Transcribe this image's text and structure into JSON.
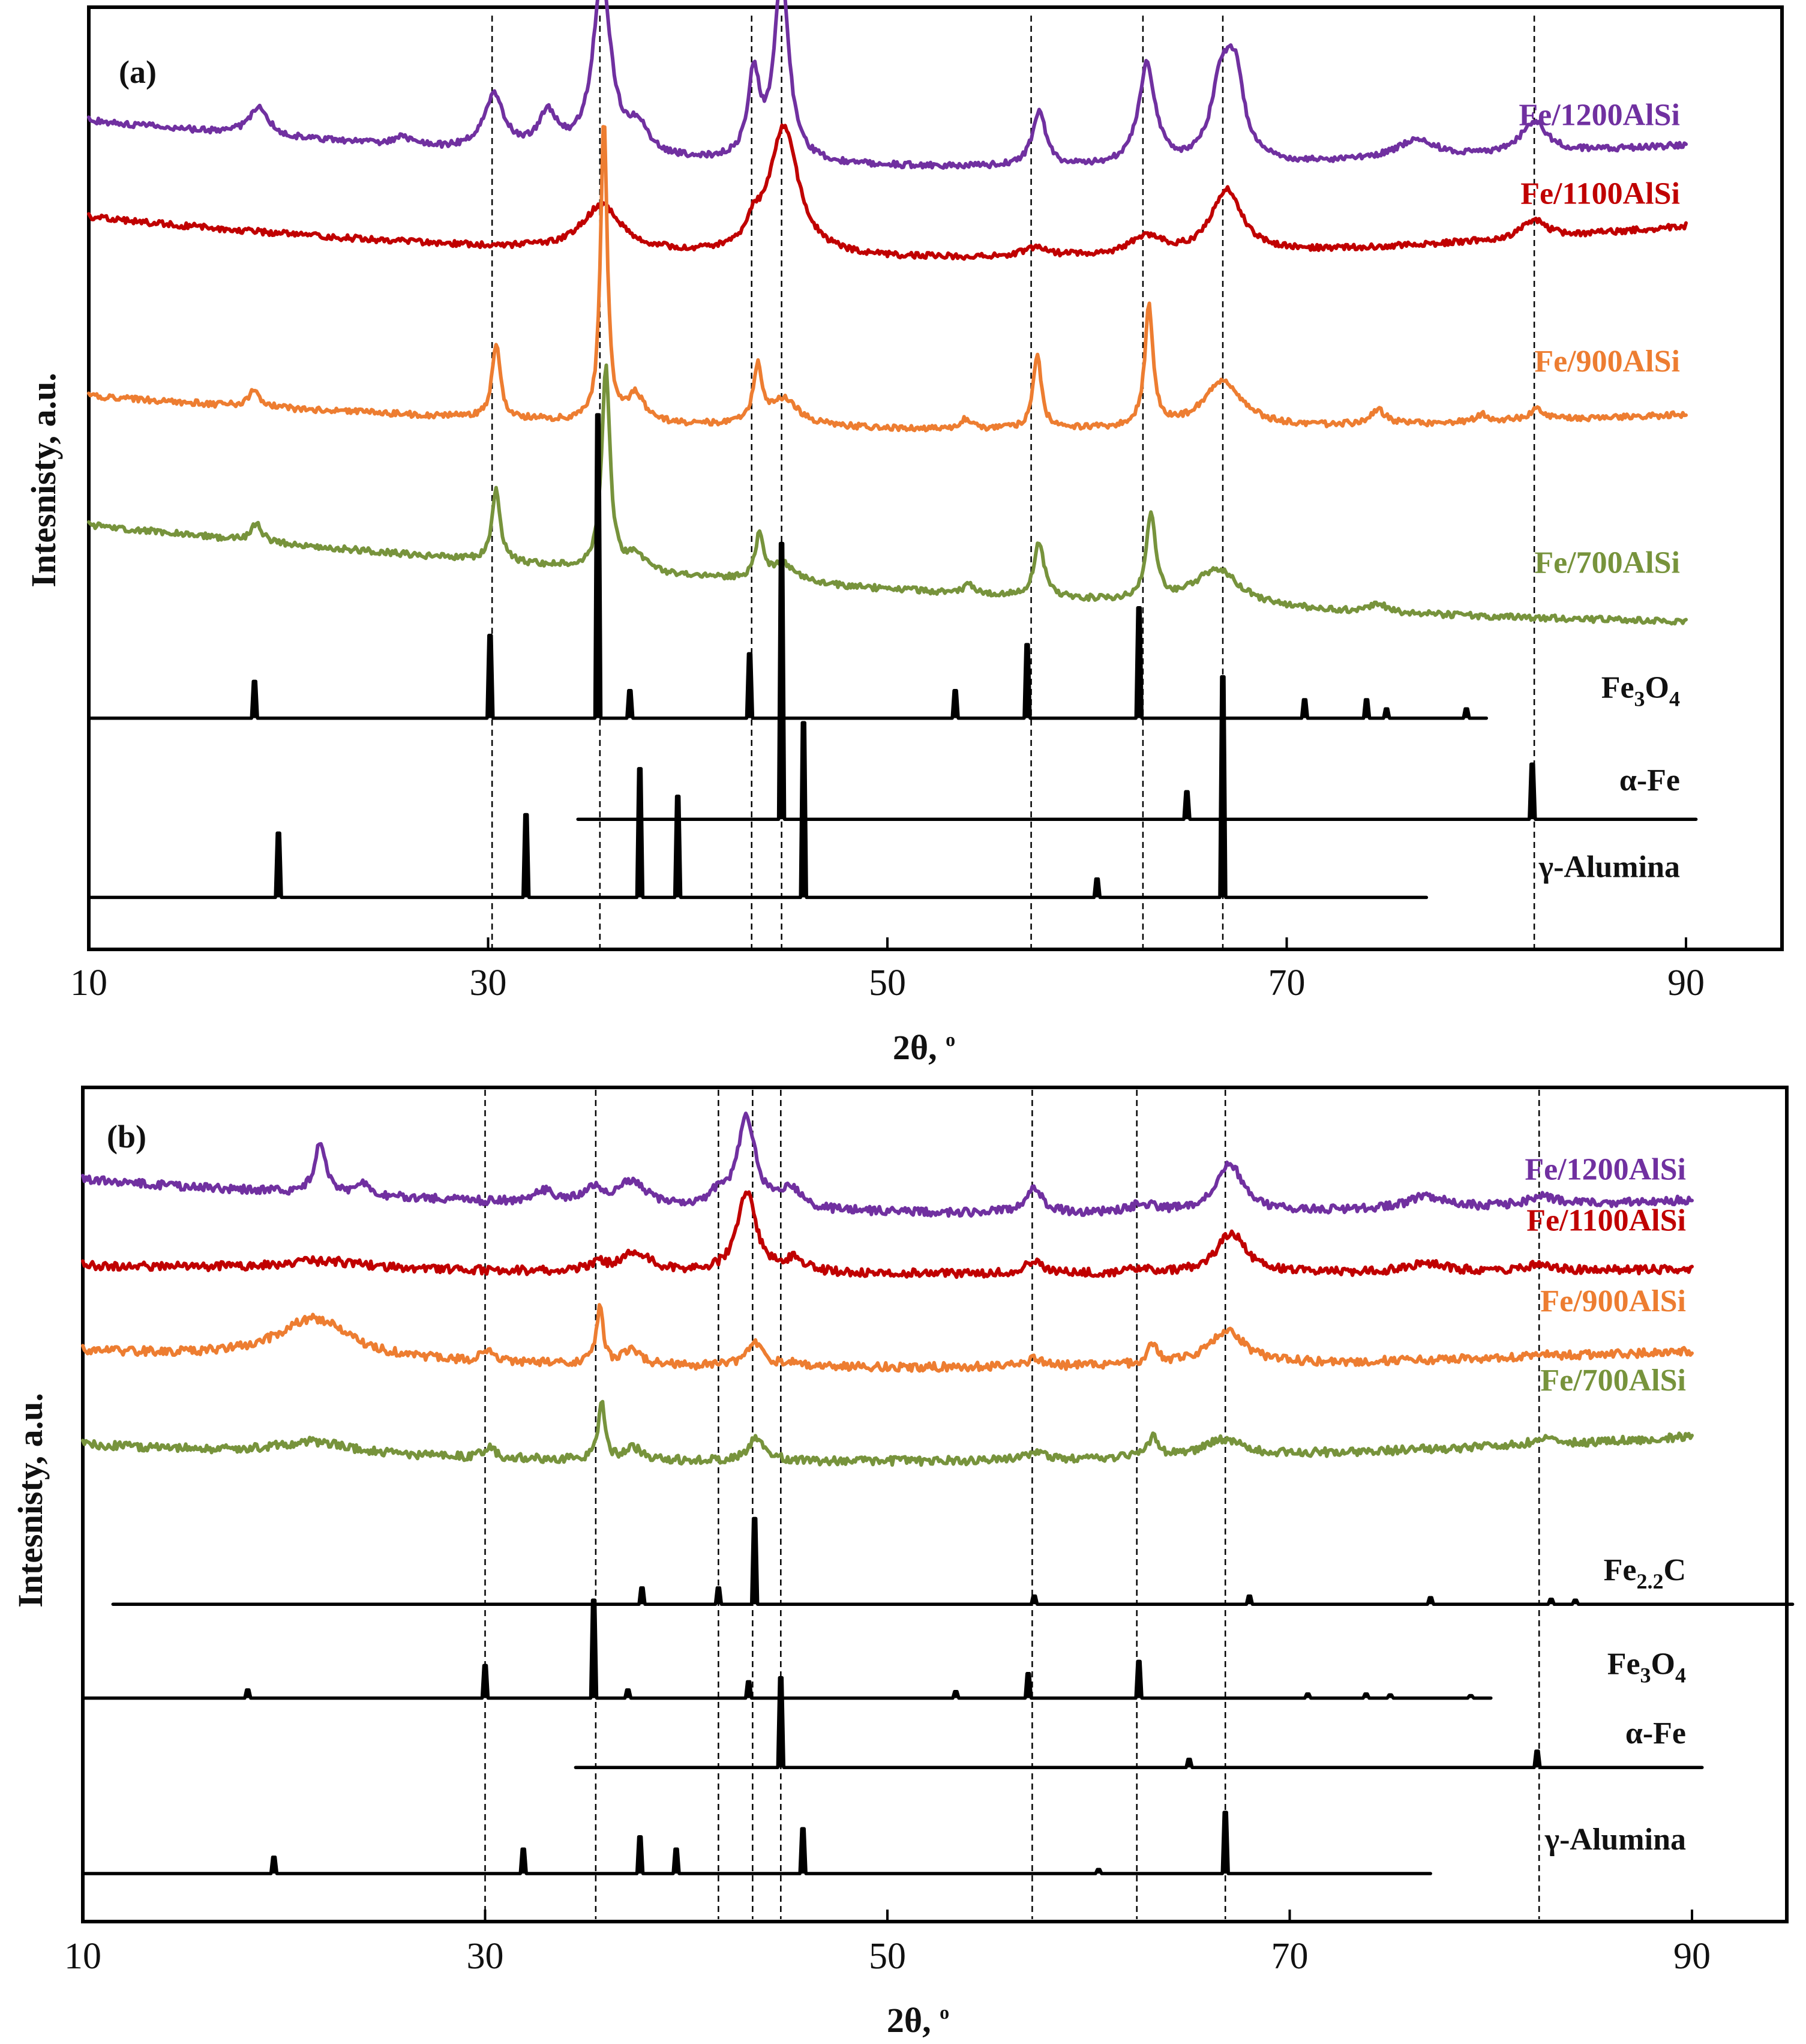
{
  "chart_data": [
    {
      "panel": "(a)",
      "type": "line",
      "title": "",
      "xlabel": "2θ, °",
      "xlabel_main": "2θ, ",
      "xlabel_degree": "o",
      "ylabel": "Intesnisty, a.u.",
      "xlim": [
        10,
        95
      ],
      "xticks": [
        10,
        30,
        50,
        70,
        90
      ],
      "grid": false,
      "reference_lines_2theta": [
        30.2,
        35.6,
        43.2,
        44.7,
        57.2,
        62.8,
        66.8,
        82.4
      ],
      "series": [
        {
          "name": "Fe/1200AlSi",
          "color": "#7030A0",
          "kind": "measured",
          "x_range": [
            10,
            90
          ],
          "baseline": [
            0.895,
            0.845,
            0.868
          ],
          "peaks": [
            [
              18.5,
              0.03,
              0.6
            ],
            [
              25.7,
              0.01,
              0.5
            ],
            [
              30.3,
              0.06,
              0.6
            ],
            [
              33.0,
              0.04,
              0.6
            ],
            [
              35.7,
              0.19,
              0.55
            ],
            [
              37.5,
              0.03,
              0.6
            ],
            [
              43.3,
              0.09,
              0.35
            ],
            [
              44.7,
              0.2,
              0.45
            ],
            [
              57.6,
              0.06,
              0.4
            ],
            [
              63.0,
              0.11,
              0.5
            ],
            [
              66.7,
              0.08,
              0.6
            ],
            [
              67.4,
              0.09,
              0.55
            ],
            [
              76.5,
              0.02,
              1.3
            ],
            [
              82.4,
              0.035,
              0.8
            ]
          ]
        },
        {
          "name": "Fe/1100AlSi",
          "color": "#C00000",
          "kind": "measured",
          "x_range": [
            10,
            90
          ],
          "baseline": [
            0.79,
            0.745,
            0.78
          ],
          "peaks": [
            [
              35.7,
              0.05,
              1.2
            ],
            [
              44.8,
              0.14,
              0.9
            ],
            [
              43.3,
              0.02,
              0.4
            ],
            [
              57.4,
              0.01,
              0.8
            ],
            [
              63.0,
              0.02,
              1.0
            ],
            [
              67.0,
              0.07,
              0.9
            ],
            [
              82.4,
              0.02,
              0.7
            ]
          ]
        },
        {
          "name": "Fe/900AlSi",
          "color": "#ED7D31",
          "kind": "measured",
          "x_range": [
            10,
            90
          ],
          "baseline": [
            0.595,
            0.56,
            0.575
          ],
          "peaks": [
            [
              18.3,
              0.02,
              0.3
            ],
            [
              30.4,
              0.08,
              0.25
            ],
            [
              35.8,
              0.33,
              0.2
            ],
            [
              37.4,
              0.03,
              0.5
            ],
            [
              43.5,
              0.06,
              0.25
            ],
            [
              44.8,
              0.03,
              0.9
            ],
            [
              53.9,
              0.01,
              0.3
            ],
            [
              57.5,
              0.08,
              0.25
            ],
            [
              63.1,
              0.13,
              0.25
            ],
            [
              66.8,
              0.05,
              1.2
            ],
            [
              74.6,
              0.015,
              0.5
            ],
            [
              79.8,
              0.008,
              0.4
            ],
            [
              82.5,
              0.012,
              0.5
            ]
          ]
        },
        {
          "name": "Fe/700AlSi",
          "color": "#77933C",
          "kind": "measured",
          "x_range": [
            10,
            90
          ],
          "baseline": [
            0.455,
            0.385,
            0.35
          ],
          "peaks": [
            [
              18.4,
              0.02,
              0.3
            ],
            [
              30.4,
              0.08,
              0.25
            ],
            [
              35.9,
              0.22,
              0.25
            ],
            [
              37.4,
              0.02,
              0.5
            ],
            [
              43.6,
              0.05,
              0.25
            ],
            [
              44.8,
              0.02,
              0.7
            ],
            [
              54.1,
              0.01,
              0.3
            ],
            [
              57.6,
              0.06,
              0.3
            ],
            [
              63.2,
              0.09,
              0.3
            ],
            [
              66.5,
              0.04,
              1.4
            ],
            [
              74.6,
              0.01,
              0.4
            ]
          ]
        },
        {
          "name": "Fe3O4",
          "label_main": "Fe",
          "label_sub": "3",
          "label_end": "O",
          "label_sub2": "4",
          "color": "#000000",
          "kind": "reference",
          "x_range": [
            10,
            80
          ],
          "baseline": 0.245,
          "sticks": [
            [
              18.3,
              0.04
            ],
            [
              30.1,
              0.09
            ],
            [
              35.5,
              0.33
            ],
            [
              37.1,
              0.03
            ],
            [
              43.1,
              0.07
            ],
            [
              53.4,
              0.03
            ],
            [
              57.0,
              0.08
            ],
            [
              62.6,
              0.12
            ],
            [
              70.9,
              0.02
            ],
            [
              74.0,
              0.02
            ],
            [
              75.0,
              0.01
            ],
            [
              79.0,
              0.01
            ]
          ]
        },
        {
          "name": "α-Fe",
          "color": "#000000",
          "kind": "reference",
          "x_range": [
            34.5,
            90.5
          ],
          "baseline": 0.135,
          "sticks": [
            [
              44.7,
              0.3
            ],
            [
              65.0,
              0.03
            ],
            [
              82.3,
              0.06
            ]
          ]
        },
        {
          "name": "γ-Alumina",
          "color": "#000000",
          "kind": "reference",
          "x_range": [
            10,
            77
          ],
          "baseline": 0.05,
          "sticks": [
            [
              19.5,
              0.07
            ],
            [
              31.9,
              0.09
            ],
            [
              37.6,
              0.14
            ],
            [
              39.5,
              0.11
            ],
            [
              45.8,
              0.19
            ],
            [
              60.5,
              0.02
            ],
            [
              66.8,
              0.24
            ]
          ]
        }
      ]
    },
    {
      "panel": "(b)",
      "type": "line",
      "title": "",
      "xlabel": "2θ, °",
      "xlabel_main": "2θ, ",
      "xlabel_degree": "o",
      "ylabel": "Intesnisty, a.u.",
      "xlim": [
        10,
        95
      ],
      "xticks": [
        10,
        30,
        50,
        70,
        90
      ],
      "grid": false,
      "reference_lines_2theta": [
        30.0,
        35.5,
        41.6,
        43.3,
        44.7,
        57.2,
        62.4,
        66.8,
        82.4
      ],
      "series": [
        {
          "name": "Fe/1200AlSi",
          "color": "#7030A0",
          "kind": "measured",
          "x_range": [
            10,
            90
          ],
          "baseline": [
            0.9,
            0.86,
            0.875
          ],
          "peaks": [
            [
              21.8,
              0.06,
              0.35
            ],
            [
              24.0,
              0.015,
              0.4
            ],
            [
              33.0,
              0.015,
              0.6
            ],
            [
              35.4,
              0.02,
              0.6
            ],
            [
              37.3,
              0.03,
              0.8
            ],
            [
              41.6,
              0.015,
              0.5
            ],
            [
              43.0,
              0.11,
              0.55
            ],
            [
              45.2,
              0.025,
              0.6
            ],
            [
              57.3,
              0.03,
              0.5
            ],
            [
              62.7,
              0.01,
              0.8
            ],
            [
              67.0,
              0.06,
              0.8
            ],
            [
              76.8,
              0.015,
              1.2
            ],
            [
              82.5,
              0.012,
              0.8
            ]
          ]
        },
        {
          "name": "Fe/1100AlSi",
          "color": "#C00000",
          "kind": "measured",
          "x_range": [
            10,
            90
          ],
          "baseline": [
            0.795,
            0.785,
            0.79
          ],
          "peaks": [
            [
              22.0,
              0.01,
              2.5
            ],
            [
              35.6,
              0.01,
              0.5
            ],
            [
              37.5,
              0.025,
              0.8
            ],
            [
              43.0,
              0.1,
              0.55
            ],
            [
              45.4,
              0.015,
              0.6
            ],
            [
              57.3,
              0.015,
              0.5
            ],
            [
              62.5,
              0.005,
              0.6
            ],
            [
              67.1,
              0.05,
              0.85
            ],
            [
              76.8,
              0.01,
              1.2
            ],
            [
              82.4,
              0.008,
              0.8
            ]
          ]
        },
        {
          "name": "Fe/900AlSi",
          "color": "#ED7D31",
          "kind": "measured",
          "x_range": [
            10,
            90
          ],
          "baseline": [
            0.69,
            0.67,
            0.69
          ],
          "peaks": [
            [
              21.5,
              0.05,
              2.2
            ],
            [
              30.1,
              0.015,
              0.3
            ],
            [
              35.7,
              0.07,
              0.2
            ],
            [
              37.3,
              0.02,
              0.5
            ],
            [
              43.4,
              0.03,
              0.5
            ],
            [
              45.3,
              0.005,
              0.5
            ],
            [
              57.4,
              0.01,
              0.5
            ],
            [
              63.2,
              0.025,
              0.3
            ],
            [
              66.9,
              0.04,
              1.1
            ],
            [
              82.5,
              0.005,
              0.5
            ]
          ]
        },
        {
          "name": "Fe/700AlSi",
          "color": "#77933C",
          "kind": "measured",
          "x_range": [
            10,
            90
          ],
          "baseline": [
            0.575,
            0.555,
            0.585
          ],
          "peaks": [
            [
              21.5,
              0.015,
              2.2
            ],
            [
              30.2,
              0.015,
              0.3
            ],
            [
              35.8,
              0.07,
              0.2
            ],
            [
              37.4,
              0.015,
              0.5
            ],
            [
              43.5,
              0.03,
              0.5
            ],
            [
              57.4,
              0.01,
              0.5
            ],
            [
              63.2,
              0.025,
              0.3
            ],
            [
              66.7,
              0.02,
              1.2
            ],
            [
              82.5,
              0.008,
              0.5
            ]
          ]
        },
        {
          "name": "Fe2.2C",
          "label_main": "Fe",
          "label_sub": "2.2",
          "label_end": "C",
          "label_sub2": "",
          "color": "#000000",
          "kind": "reference",
          "x_range": [
            11.5,
            95
          ],
          "baseline": 0.38,
          "sticks": [
            [
              37.8,
              0.02
            ],
            [
              41.6,
              0.02
            ],
            [
              43.4,
              0.105
            ],
            [
              57.3,
              0.01
            ],
            [
              68.0,
              0.01
            ],
            [
              77.0,
              0.008
            ],
            [
              83.0,
              0.006
            ],
            [
              84.2,
              0.005
            ]
          ]
        },
        {
          "name": "Fe3O4",
          "label_main": "Fe",
          "label_sub": "3",
          "label_end": "O",
          "label_sub2": "4",
          "color": "#000000",
          "kind": "reference",
          "x_range": [
            10,
            80
          ],
          "baseline": 0.265,
          "sticks": [
            [
              18.2,
              0.01
            ],
            [
              30.0,
              0.04
            ],
            [
              35.4,
              0.12
            ],
            [
              37.1,
              0.01
            ],
            [
              43.1,
              0.02
            ],
            [
              53.4,
              0.008
            ],
            [
              57.0,
              0.03
            ],
            [
              62.5,
              0.045
            ],
            [
              70.9,
              0.005
            ],
            [
              73.8,
              0.005
            ],
            [
              75.0,
              0.004
            ],
            [
              79.0,
              0.003
            ]
          ]
        },
        {
          "name": "α-Fe",
          "color": "#000000",
          "kind": "reference",
          "x_range": [
            34.5,
            90.5
          ],
          "baseline": 0.18,
          "sticks": [
            [
              44.7,
              0.11
            ],
            [
              65.0,
              0.01
            ],
            [
              82.3,
              0.02
            ]
          ]
        },
        {
          "name": "γ-Alumina",
          "color": "#000000",
          "kind": "reference",
          "x_range": [
            10,
            77
          ],
          "baseline": 0.05,
          "sticks": [
            [
              19.5,
              0.02
            ],
            [
              31.9,
              0.03
            ],
            [
              37.7,
              0.045
            ],
            [
              39.5,
              0.03
            ],
            [
              45.8,
              0.055
            ],
            [
              60.5,
              0.005
            ],
            [
              66.8,
              0.075
            ]
          ]
        }
      ]
    }
  ]
}
